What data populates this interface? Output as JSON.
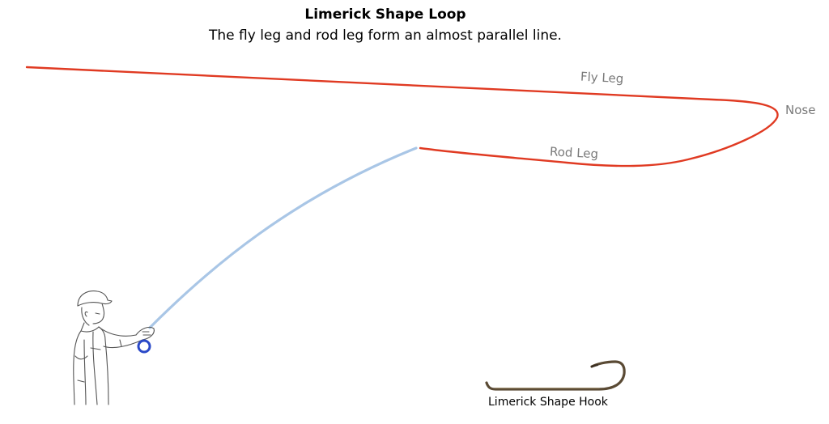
{
  "header": {
    "title": "Limerick Shape Loop",
    "subtitle": "The fly leg and rod leg form an almost parallel line."
  },
  "labels": {
    "fly_leg": "Fly Leg",
    "rod_leg": "Rod Leg",
    "nose": "Nose",
    "hook_caption": "Limerick Shape Hook"
  },
  "colors": {
    "fly_line": "#e03a22",
    "rod": "#a9c6e6",
    "reel": "#2a49c8",
    "hook": "#5a4a34",
    "label": "#7a7a7a",
    "sketch": "#555555"
  },
  "icons": {
    "angler": "angler-illustration",
    "hook": "hook-icon"
  }
}
